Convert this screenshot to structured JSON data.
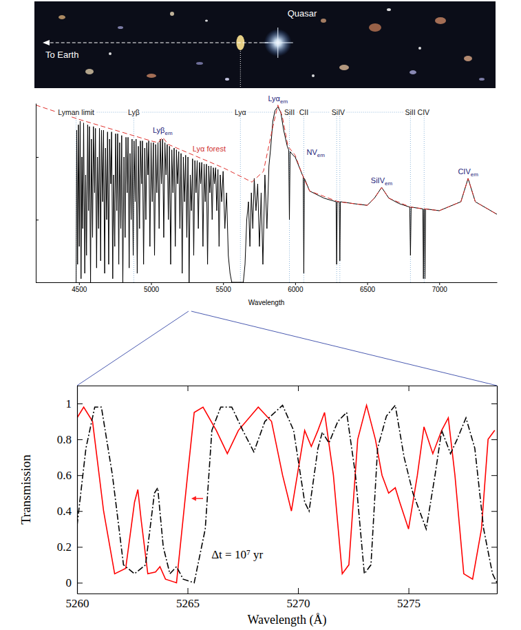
{
  "photo": {
    "quasar_label": "Quasar",
    "direction_label": "To Earth"
  },
  "chart_data": [
    {
      "type": "line",
      "x_label": "Wavelength",
      "xlim": [
        4200,
        7400
      ],
      "xticks": [
        4500,
        5000,
        5500,
        6000,
        6500,
        7000
      ],
      "ylim": [
        0,
        1
      ],
      "yticks": [
        0,
        0.35,
        0.7
      ],
      "tick_labels": "x",
      "series": [
        {
          "color": "#000000",
          "line_style": "solid",
          "x": [
            4480,
            4484,
            4490,
            4496,
            4502,
            4508,
            4514,
            4520,
            4526,
            4532,
            4540,
            4546,
            4552,
            4560,
            4566,
            4572,
            4580,
            4586,
            4594,
            4600,
            4608,
            4614,
            4622,
            4628,
            4636,
            4642,
            4650,
            4656,
            4664,
            4670,
            4678,
            4684,
            4692,
            4698,
            4706,
            4712,
            4720,
            4726,
            4734,
            4740,
            4748,
            4754,
            4762,
            4768,
            4776,
            4782,
            4790,
            4796,
            4804,
            4812,
            4820,
            4826,
            4834,
            4840,
            4848,
            4854,
            4862,
            4868,
            4876,
            4882,
            4890,
            4896,
            4904,
            4912,
            4920,
            4926,
            4934,
            4940,
            4948,
            4956,
            4964,
            4970,
            4978,
            4984,
            4992,
            5000,
            5008,
            5016,
            5024,
            5032,
            5040,
            5048,
            5056,
            5064,
            5072,
            5080,
            5088,
            5096,
            5104,
            5112,
            5120,
            5128,
            5136,
            5144,
            5152,
            5160,
            5168,
            5176,
            5184,
            5192,
            5200,
            5208,
            5216,
            5224,
            5232,
            5240,
            5248,
            5256,
            5264,
            5272,
            5280,
            5288,
            5296,
            5304,
            5312,
            5320,
            5328,
            5336,
            5344,
            5352,
            5360,
            5368,
            5376,
            5384,
            5392,
            5400,
            5408,
            5416,
            5424,
            5432,
            5440,
            5448,
            5456,
            5464,
            5472,
            5480,
            5490,
            5500,
            5512,
            5524,
            5536,
            5548,
            5560,
            5600,
            5640,
            5652,
            5664,
            5676,
            5686,
            5696,
            5706,
            5716,
            5728,
            5740,
            5752,
            5764,
            5776,
            5790,
            5804,
            5818,
            5830,
            5845,
            5860,
            5880,
            5900,
            5920,
            5945,
            5955,
            5960,
            5965,
            5985,
            6000,
            6025,
            6050,
            6056,
            6060,
            6064,
            6080,
            6100,
            6200,
            6284,
            6288,
            6292,
            6306,
            6310,
            6314,
            6400,
            6500,
            6550,
            6600,
            6650,
            6720,
            6795,
            6800,
            6805,
            6886,
            6890,
            6894,
            6897,
            6901,
            6905,
            7000,
            7150,
            7200,
            7250,
            7400
          ],
          "values": [
            0.0,
            0.85,
            0.1,
            0.88,
            0.2,
            0.9,
            0.02,
            0.7,
            0.3,
            0.89,
            0.05,
            0.6,
            0.15,
            0.88,
            0.4,
            0.87,
            0.0,
            0.8,
            0.25,
            0.87,
            0.5,
            0.86,
            0.08,
            0.7,
            0.3,
            0.86,
            0.12,
            0.85,
            0.45,
            0.85,
            0.05,
            0.75,
            0.35,
            0.84,
            0.1,
            0.8,
            0.55,
            0.84,
            0.02,
            0.6,
            0.2,
            0.83,
            0.4,
            0.83,
            0.1,
            0.78,
            0.3,
            0.82,
            0.0,
            0.7,
            0.25,
            0.81,
            0.5,
            0.81,
            0.08,
            0.72,
            0.35,
            0.8,
            0.15,
            0.79,
            0.45,
            0.8,
            0.05,
            0.76,
            0.3,
            0.79,
            0.55,
            0.79,
            0.1,
            0.75,
            0.35,
            0.78,
            0.6,
            0.79,
            0.2,
            0.78,
            0.45,
            0.78,
            0.15,
            0.77,
            0.5,
            0.78,
            0.3,
            0.8,
            0.55,
            0.8,
            0.25,
            0.78,
            0.6,
            0.77,
            0.35,
            0.76,
            0.1,
            0.74,
            0.5,
            0.75,
            0.2,
            0.74,
            0.55,
            0.73,
            0.3,
            0.72,
            0.05,
            0.7,
            0.45,
            0.71,
            0.25,
            0.7,
            0.0,
            0.6,
            0.4,
            0.69,
            0.15,
            0.68,
            0.5,
            0.68,
            0.3,
            0.67,
            0.55,
            0.67,
            0.2,
            0.66,
            0.45,
            0.66,
            0.1,
            0.65,
            0.5,
            0.65,
            0.35,
            0.64,
            0.55,
            0.64,
            0.4,
            0.63,
            0.2,
            0.6,
            0.45,
            0.62,
            0.3,
            0.5,
            0.15,
            0.05,
            0.0,
            0.0,
            0.0,
            0.1,
            0.35,
            0.45,
            0.2,
            0.5,
            0.3,
            0.58,
            0.4,
            0.55,
            0.2,
            0.5,
            0.1,
            0.6,
            0.3,
            0.65,
            0.75,
            0.9,
            0.96,
            0.98,
            0.95,
            0.85,
            0.76,
            0.74,
            0.35,
            0.73,
            0.71,
            0.7,
            0.65,
            0.6,
            0.59,
            0.05,
            0.58,
            0.55,
            0.51,
            0.47,
            0.45,
            0.1,
            0.45,
            0.45,
            0.12,
            0.45,
            0.44,
            0.43,
            0.47,
            0.53,
            0.47,
            0.44,
            0.42,
            0.15,
            0.42,
            0.41,
            0.02,
            0.41,
            0.41,
            0.02,
            0.41,
            0.4,
            0.45,
            0.58,
            0.45,
            0.38
          ]
        },
        {
          "color": "#e0302c",
          "line_style": "dashed",
          "x": [
            4200,
            4500,
            5000,
            5050,
            5080,
            5120,
            5500,
            5700,
            5780,
            5840,
            5880,
            5910,
            5950,
            6000,
            6050,
            6100,
            6300,
            6500,
            6550,
            6600,
            6650,
            6800,
            7000,
            7150,
            7200,
            7250,
            7400
          ],
          "values": [
            0.99,
            0.91,
            0.79,
            0.78,
            0.81,
            0.77,
            0.64,
            0.56,
            0.62,
            0.85,
            0.99,
            0.93,
            0.76,
            0.71,
            0.6,
            0.51,
            0.45,
            0.43,
            0.47,
            0.53,
            0.47,
            0.42,
            0.4,
            0.45,
            0.58,
            0.45,
            0.38
          ]
        }
      ],
      "absorption_labels": [
        {
          "text": "Lyman limit",
          "x": [
            4480
          ]
        },
        {
          "text": "Lyβ",
          "x": [
            4880
          ]
        },
        {
          "text": "Lyα",
          "x": [
            5620
          ]
        },
        {
          "text": "SiII",
          "x": [
            5960
          ]
        },
        {
          "text": "CII",
          "x": [
            6060
          ]
        },
        {
          "text": "SiIV",
          "x": [
            6288,
            6310
          ]
        },
        {
          "text": "SiII CIV",
          "x": [
            6800,
            6895
          ]
        }
      ],
      "emission_labels": [
        {
          "text": "Lyβ",
          "sub": "em",
          "x": 5080
        },
        {
          "text": "Lyα",
          "sub": "em",
          "x": 5880
        },
        {
          "text": "NV",
          "sub": "em",
          "x": 6010
        },
        {
          "text": "SiIV",
          "sub": "em",
          "x": 6600
        },
        {
          "text": "CIV",
          "sub": "em",
          "x": 7200
        }
      ],
      "annotations": [
        {
          "text": "Lyα forest"
        }
      ]
    },
    {
      "type": "line",
      "x_label": "Wavelength (Å)",
      "y_label": "Transmission",
      "xlim": [
        5260,
        5279
      ],
      "xticks": [
        5260,
        5265,
        5270,
        5275
      ],
      "ylim": [
        -0.06,
        1.1
      ],
      "yticks": [
        0,
        0.2,
        0.4,
        0.6,
        0.8,
        1
      ],
      "series": [
        {
          "color": "#ff0000",
          "line_style": "solid",
          "x": [
            5260,
            5260.3,
            5260.7,
            5261.2,
            5261.7,
            5262.2,
            5262.6,
            5262.75,
            5262.9,
            5263.2,
            5263.55,
            5263.75,
            5264,
            5264.5,
            5265,
            5265.3,
            5265.7,
            5266.3,
            5266.8,
            5267.3,
            5268.2,
            5268.8,
            5269.3,
            5269.7,
            5270.1,
            5270.3,
            5270.6,
            5270.9,
            5271.2,
            5271.6,
            5272,
            5272.3,
            5272.7,
            5273.1,
            5273.5,
            5273.8,
            5274.1,
            5274.4,
            5274.6,
            5275,
            5275.4,
            5275.7,
            5276.1,
            5276.5,
            5276.8,
            5277.1,
            5277.5,
            5277.9,
            5278.3,
            5278.6,
            5278.9
          ],
          "values": [
            0.92,
            0.98,
            0.9,
            0.4,
            0.05,
            0.08,
            0.45,
            0.52,
            0.35,
            0.05,
            0.06,
            0.09,
            0.02,
            0.0,
            0.6,
            0.95,
            0.98,
            0.85,
            0.72,
            0.85,
            0.98,
            0.9,
            0.6,
            0.4,
            0.7,
            0.85,
            0.76,
            0.85,
            0.95,
            0.6,
            0.05,
            0.1,
            0.8,
            0.99,
            0.8,
            0.6,
            0.5,
            0.53,
            0.45,
            0.3,
            0.6,
            0.87,
            0.72,
            0.85,
            0.92,
            0.6,
            0.05,
            0.02,
            0.3,
            0.8,
            0.85
          ]
        },
        {
          "color": "#000000",
          "line_style": "dashdot",
          "x": [
            5260,
            5260.4,
            5260.8,
            5261.1,
            5261.6,
            5262.1,
            5262.6,
            5263.1,
            5263.5,
            5263.65,
            5263.9,
            5264.2,
            5264.5,
            5264.8,
            5265.3,
            5265.8,
            5266.1,
            5266.5,
            5267,
            5267.5,
            5268,
            5268.5,
            5269.3,
            5269.8,
            5270.3,
            5270.5,
            5270.9,
            5271.1,
            5271.4,
            5271.8,
            5272.2,
            5272.6,
            5273,
            5273.3,
            5273.6,
            5274,
            5274.4,
            5274.8,
            5275.2,
            5275.5,
            5275.8,
            5276.2,
            5276.5,
            5276.9,
            5277.2,
            5277.6,
            5278,
            5278.4,
            5278.8,
            5279
          ],
          "values": [
            0.32,
            0.75,
            0.98,
            0.98,
            0.6,
            0.1,
            0.05,
            0.1,
            0.5,
            0.53,
            0.2,
            0.05,
            0.09,
            0.02,
            0.0,
            0.3,
            0.85,
            0.98,
            0.98,
            0.85,
            0.73,
            0.9,
            0.99,
            0.85,
            0.45,
            0.4,
            0.75,
            0.84,
            0.78,
            0.9,
            0.95,
            0.6,
            0.05,
            0.1,
            0.75,
            0.93,
            0.99,
            0.7,
            0.5,
            0.4,
            0.3,
            0.6,
            0.85,
            0.72,
            0.8,
            0.92,
            0.75,
            0.3,
            0.05,
            0.0
          ]
        }
      ],
      "annotations": [
        {
          "text": "Δt = 10⁷ yr"
        }
      ]
    }
  ]
}
